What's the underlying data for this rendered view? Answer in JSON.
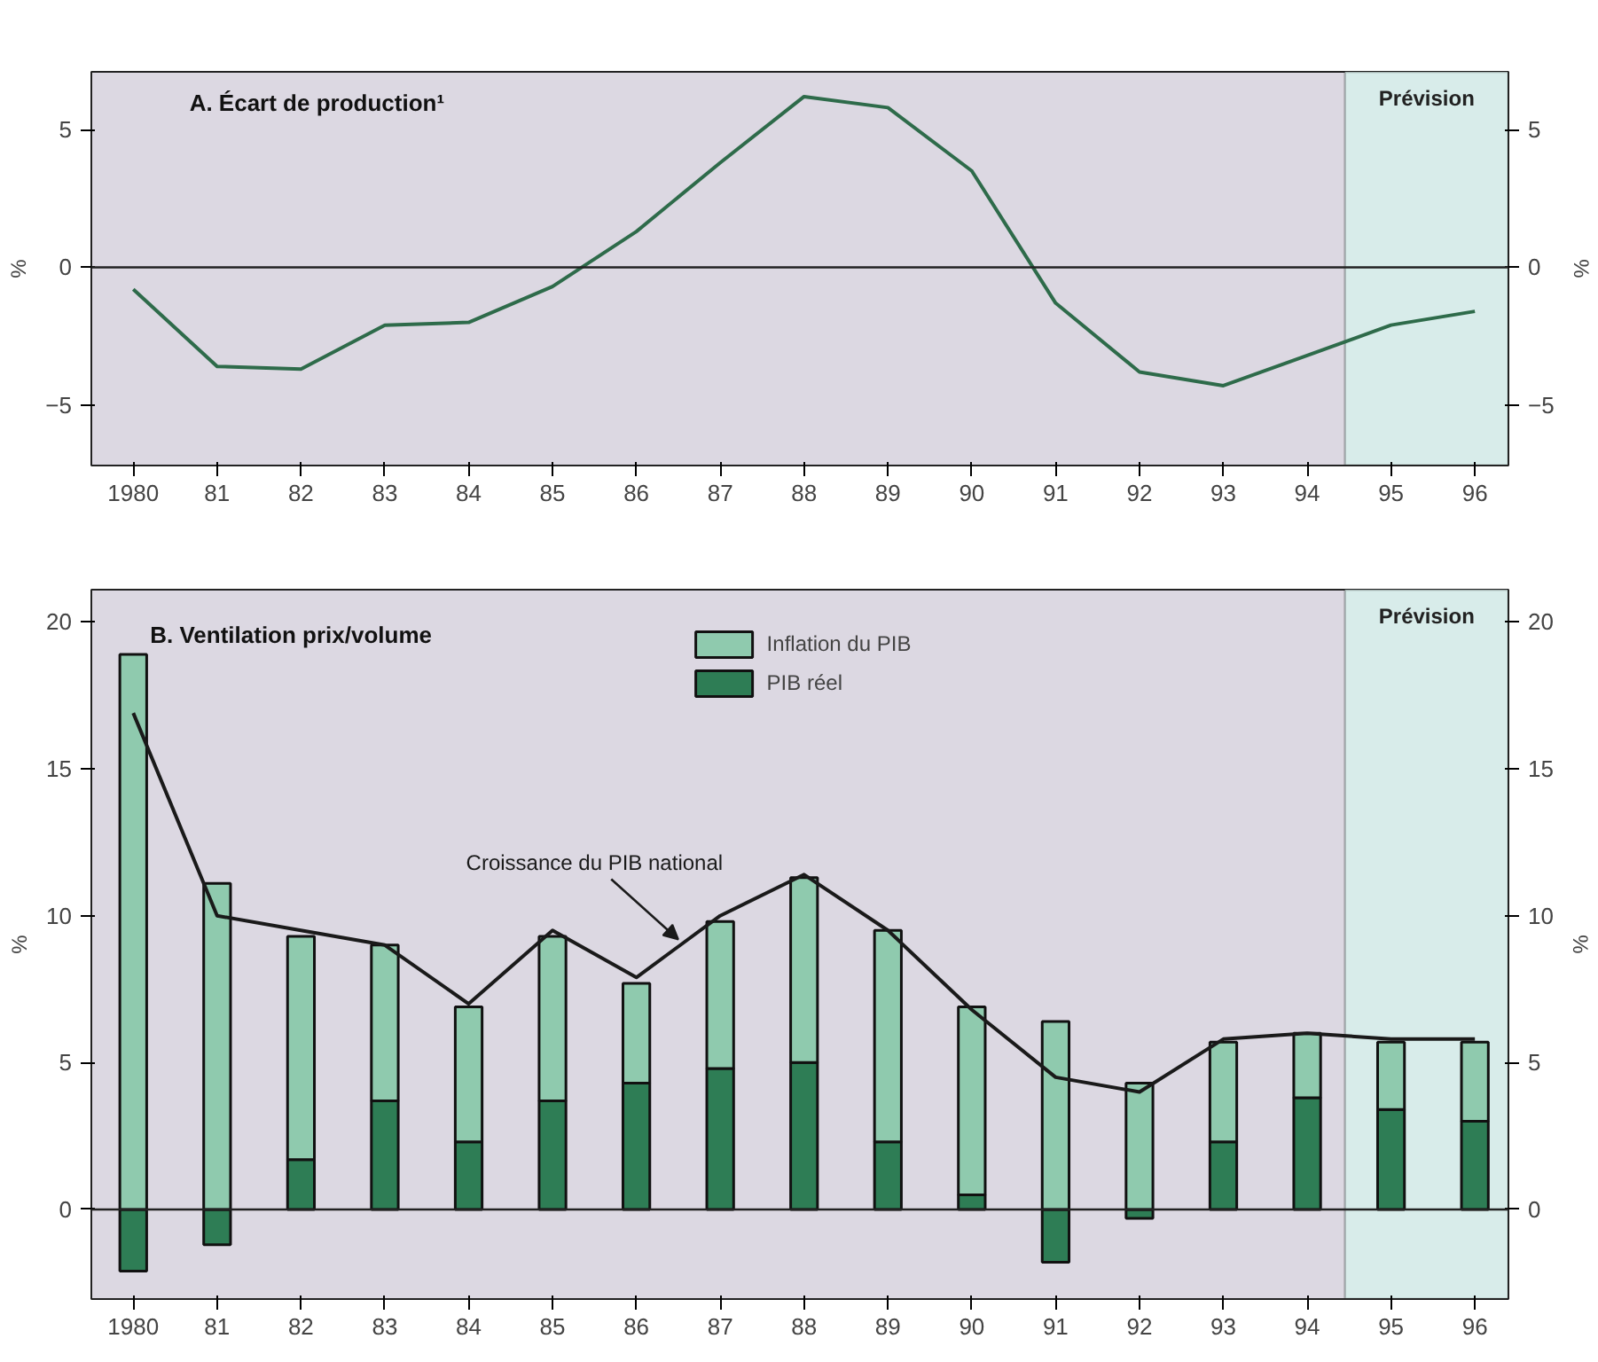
{
  "chart_data": [
    {
      "type": "line",
      "title": "A.  Écart de production¹",
      "ylabel": "%",
      "y2label": "%",
      "x": [
        1980,
        1981,
        1982,
        1983,
        1984,
        1985,
        1986,
        1987,
        1988,
        1989,
        1990,
        1991,
        1992,
        1993,
        1994,
        1995,
        1996
      ],
      "series": [
        {
          "color": "#2e6b4a",
          "values": [
            -0.8,
            -3.6,
            -3.7,
            -2.1,
            -2.0,
            -0.7,
            1.3,
            3.8,
            6.2,
            5.8,
            3.5,
            -1.3,
            -3.8,
            -4.3,
            -3.2,
            -2.1,
            -1.6
          ]
        }
      ],
      "xlim": [
        1979.5,
        1996.4
      ],
      "ylim": [
        -7.2,
        7.1
      ],
      "y2lim": [
        -7.2,
        7.1
      ],
      "xticks": [
        {
          "value": 1980,
          "label": "1980"
        },
        {
          "value": 1981,
          "label": "81"
        },
        {
          "value": 1982,
          "label": "82"
        },
        {
          "value": 1983,
          "label": "83"
        },
        {
          "value": 1984,
          "label": "84"
        },
        {
          "value": 1985,
          "label": "85"
        },
        {
          "value": 1986,
          "label": "86"
        },
        {
          "value": 1987,
          "label": "87"
        },
        {
          "value": 1988,
          "label": "88"
        },
        {
          "value": 1989,
          "label": "89"
        },
        {
          "value": 1990,
          "label": "90"
        },
        {
          "value": 1991,
          "label": "91"
        },
        {
          "value": 1992,
          "label": "92"
        },
        {
          "value": 1993,
          "label": "93"
        },
        {
          "value": 1994,
          "label": "94"
        },
        {
          "value": 1995,
          "label": "95"
        },
        {
          "value": 1996,
          "label": "96"
        }
      ],
      "yticks": [
        -5,
        0,
        5
      ],
      "y2ticks": [
        -5,
        0,
        5
      ],
      "ref_lines": [
        {
          "axis": "y",
          "value": 0,
          "color": "#222222"
        }
      ],
      "bands": [
        {
          "axis": "x",
          "from": 1994.45,
          "to": 1996.4,
          "label": "Prévision",
          "color": "#d8ecea"
        }
      ],
      "grid": false,
      "legend": false
    },
    {
      "type": "bar",
      "stacked": true,
      "title": "B.  Ventilation prix/volume",
      "ylabel": "%",
      "y2label": "%",
      "x": [
        1980,
        1981,
        1982,
        1983,
        1984,
        1985,
        1986,
        1987,
        1988,
        1989,
        1990,
        1991,
        1992,
        1993,
        1994,
        1995,
        1996
      ],
      "series": [
        {
          "name": "PIB réel",
          "color": "#2e7d55",
          "values": [
            -2.1,
            -1.2,
            1.7,
            3.7,
            2.3,
            3.7,
            4.3,
            4.8,
            5.0,
            2.3,
            0.5,
            -1.8,
            -0.3,
            2.3,
            3.8,
            3.4,
            3.0
          ]
        },
        {
          "name": "Inflation du PIB",
          "color": "#8fcaae",
          "values": [
            18.9,
            11.1,
            7.6,
            5.3,
            4.6,
            5.6,
            3.4,
            5.0,
            6.3,
            7.2,
            6.4,
            6.4,
            4.3,
            3.4,
            2.2,
            2.3,
            2.7
          ]
        },
        {
          "name": "Croissance du PIB national",
          "type": "line",
          "color": "#1a1a1a",
          "values": [
            16.9,
            10.0,
            9.5,
            9.0,
            7.0,
            9.5,
            7.9,
            10.0,
            11.4,
            9.5,
            6.8,
            4.5,
            4.0,
            5.8,
            6.0,
            5.8,
            5.8
          ]
        }
      ],
      "xlim": [
        1979.5,
        1996.4
      ],
      "ylim": [
        -3.05,
        21.1
      ],
      "y2lim": [
        -3.05,
        21.1
      ],
      "xticks": [
        {
          "value": 1980,
          "label": "1980"
        },
        {
          "value": 1981,
          "label": "81"
        },
        {
          "value": 1982,
          "label": "82"
        },
        {
          "value": 1983,
          "label": "83"
        },
        {
          "value": 1984,
          "label": "84"
        },
        {
          "value": 1985,
          "label": "85"
        },
        {
          "value": 1986,
          "label": "86"
        },
        {
          "value": 1987,
          "label": "87"
        },
        {
          "value": 1988,
          "label": "88"
        },
        {
          "value": 1989,
          "label": "89"
        },
        {
          "value": 1990,
          "label": "90"
        },
        {
          "value": 1991,
          "label": "91"
        },
        {
          "value": 1992,
          "label": "92"
        },
        {
          "value": 1993,
          "label": "93"
        },
        {
          "value": 1994,
          "label": "94"
        },
        {
          "value": 1995,
          "label": "95"
        },
        {
          "value": 1996,
          "label": "96"
        }
      ],
      "yticks": [
        0,
        5,
        10,
        15,
        20
      ],
      "y2ticks": [
        0,
        5,
        10,
        15,
        20
      ],
      "ref_lines": [
        {
          "axis": "y",
          "value": 0,
          "color": "#222222"
        }
      ],
      "bands": [
        {
          "axis": "x",
          "from": 1994.45,
          "to": 1996.4,
          "label": "Prévision",
          "color": "#d8ecea"
        }
      ],
      "grid": false,
      "legend": "top"
    }
  ]
}
